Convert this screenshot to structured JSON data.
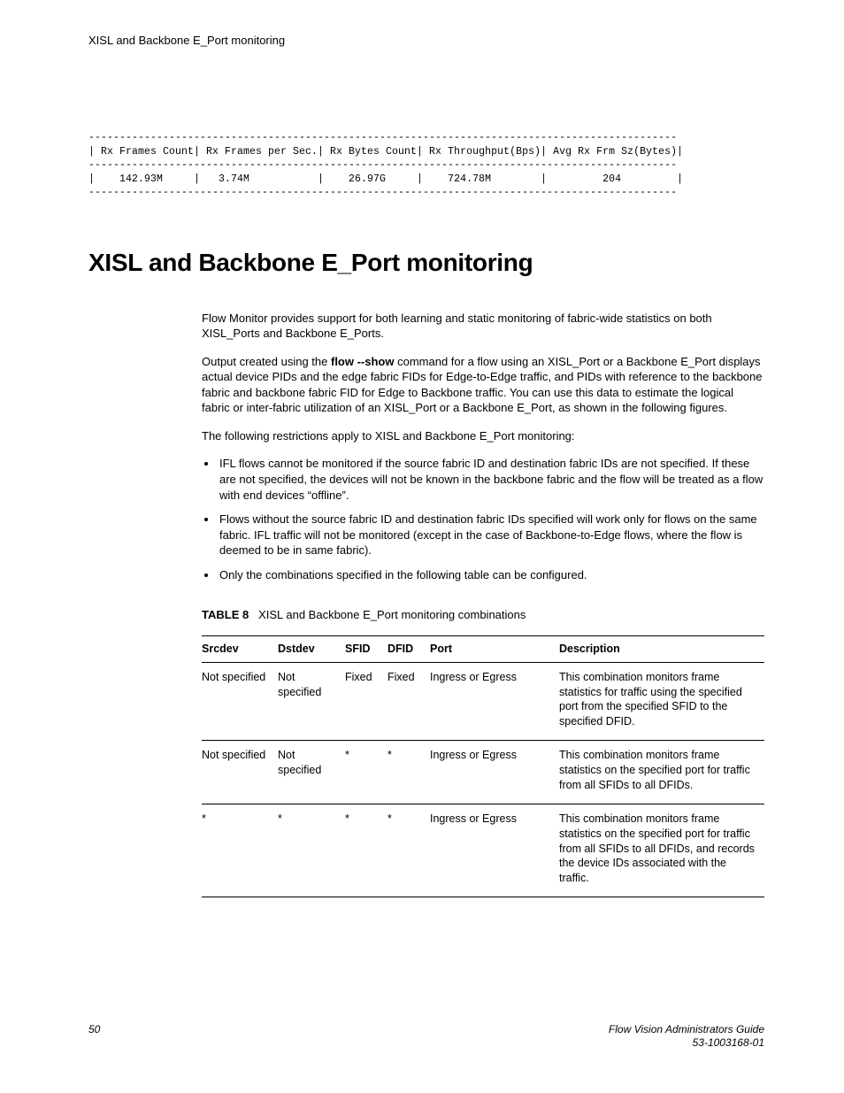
{
  "running_header": "XISL and Backbone E_Port monitoring",
  "ascii": {
    "dash_line": "-----------------------------------------------------------------------------------------------",
    "header_row": "| Rx Frames Count| Rx Frames per Sec.| Rx Bytes Count| Rx Throughput(Bps)| Avg Rx Frm Sz(Bytes)|",
    "data_row": "|    142.93M     |   3.74M           |    26.97G     |    724.78M        |         204         |"
  },
  "section_title": "XISL and Backbone E_Port monitoring",
  "paragraphs": {
    "p1": "Flow Monitor provides support for both learning and static monitoring of fabric-wide statistics on both XISL_Ports and Backbone E_Ports.",
    "p2a": "Output created using the ",
    "p2_cmd": "flow --show",
    "p2b": " command for a flow using an XISL_Port or a Backbone E_Port displays actual device PIDs and the edge fabric FIDs for Edge-to-Edge traffic, and PIDs with reference to the backbone fabric and backbone fabric FID for Edge to Backbone traffic. You can use this data to estimate the logical fabric or inter-fabric utilization of an XISL_Port or a Backbone E_Port, as shown in the following figures.",
    "p3": "The following restrictions apply to XISL and Backbone E_Port monitoring:"
  },
  "bullets": [
    "IFL flows cannot be monitored if the source fabric ID and destination fabric IDs are not specified. If these are not specified, the devices will not be known in the backbone fabric and the flow will be treated as a flow with end devices “offline”.",
    "Flows without the source fabric ID and destination fabric IDs specified will work only for flows on the same fabric. IFL traffic will not be monitored (except in the case of Backbone-to-Edge flows, where the flow is deemed to be in same fabric).",
    "Only the combinations specified in the following table can be configured."
  ],
  "table_caption": {
    "label": "TABLE 8",
    "text": "XISL and Backbone E_Port monitoring combinations"
  },
  "table": {
    "headers": [
      "Srcdev",
      "Dstdev",
      "SFID",
      "DFID",
      "Port",
      "Description"
    ],
    "rows": [
      [
        "Not specified",
        "Not specified",
        "Fixed",
        "Fixed",
        "Ingress or Egress",
        "This combination monitors frame statistics for traffic using the specified port from the specified SFID to the specified DFID."
      ],
      [
        "Not specified",
        "Not specified",
        "*",
        "*",
        "Ingress or Egress",
        "This combination monitors frame statistics on the specified port for traffic from all SFIDs to all DFIDs."
      ],
      [
        "*",
        "*",
        "*",
        "*",
        "Ingress or Egress",
        "This combination monitors frame statistics on the specified port for traffic from all SFIDs to all DFIDs, and records the device IDs associated with the traffic."
      ]
    ]
  },
  "footer": {
    "page_number": "50",
    "doc_title": "Flow Vision Administrators Guide",
    "doc_id": "53-1003168-01"
  }
}
